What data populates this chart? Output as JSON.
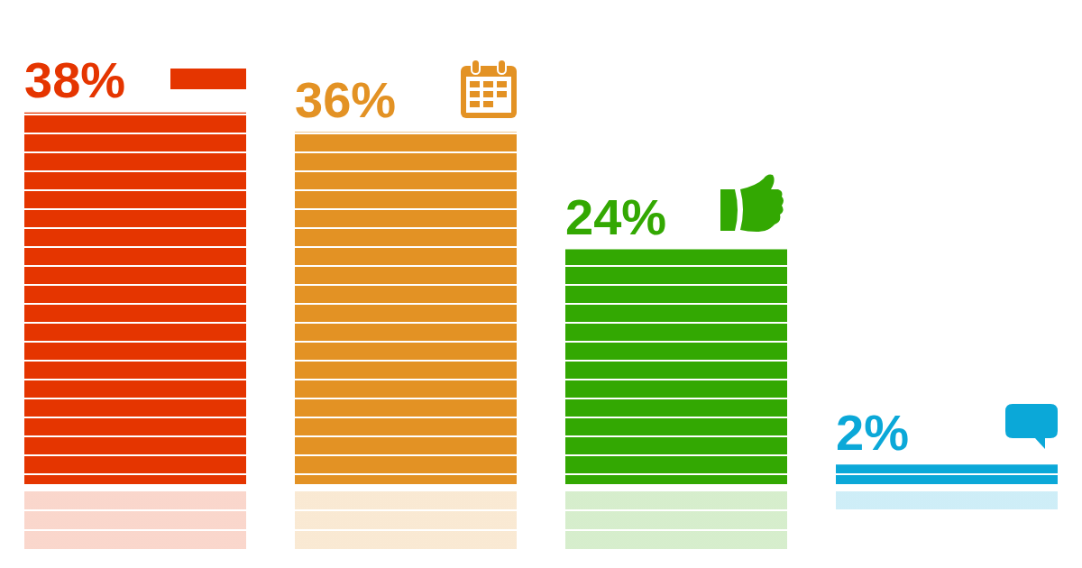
{
  "chart_data": {
    "type": "bar",
    "categories": [
      null,
      null,
      null,
      null
    ],
    "values": [
      38,
      36,
      24,
      2
    ],
    "colors": [
      "#e53500",
      "#e39224",
      "#33a802",
      "#0ba8d8"
    ],
    "value_labels": [
      "38%",
      "36%",
      "24%",
      "2%"
    ],
    "tick_labels": false
  }
}
